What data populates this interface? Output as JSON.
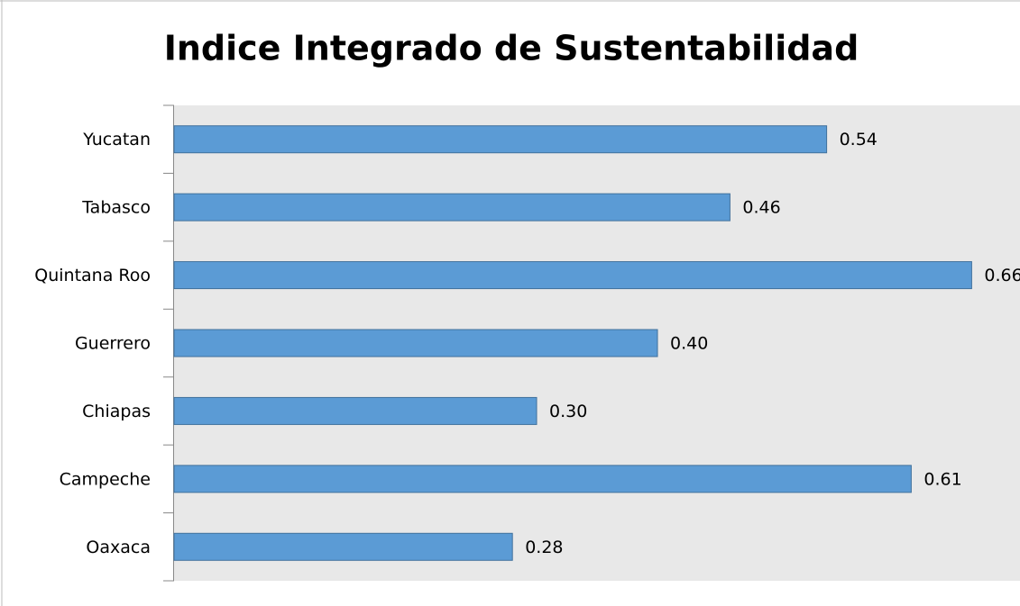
{
  "chart_data": {
    "type": "bar",
    "orientation": "horizontal",
    "title": "Indice Integrado de Sustentabilidad",
    "categories": [
      "Yucatan",
      "Tabasco",
      "Quintana Roo",
      "Guerrero",
      "Chiapas",
      "Campeche",
      "Oaxaca"
    ],
    "values": [
      0.54,
      0.46,
      0.66,
      0.4,
      0.3,
      0.61,
      0.28
    ],
    "value_labels": [
      "0.54",
      "0.46",
      "0.66",
      "0.40",
      "0.30",
      "0.61",
      "0.28"
    ],
    "color": "#5b9bd5",
    "xlim": [
      0,
      0.7
    ]
  }
}
